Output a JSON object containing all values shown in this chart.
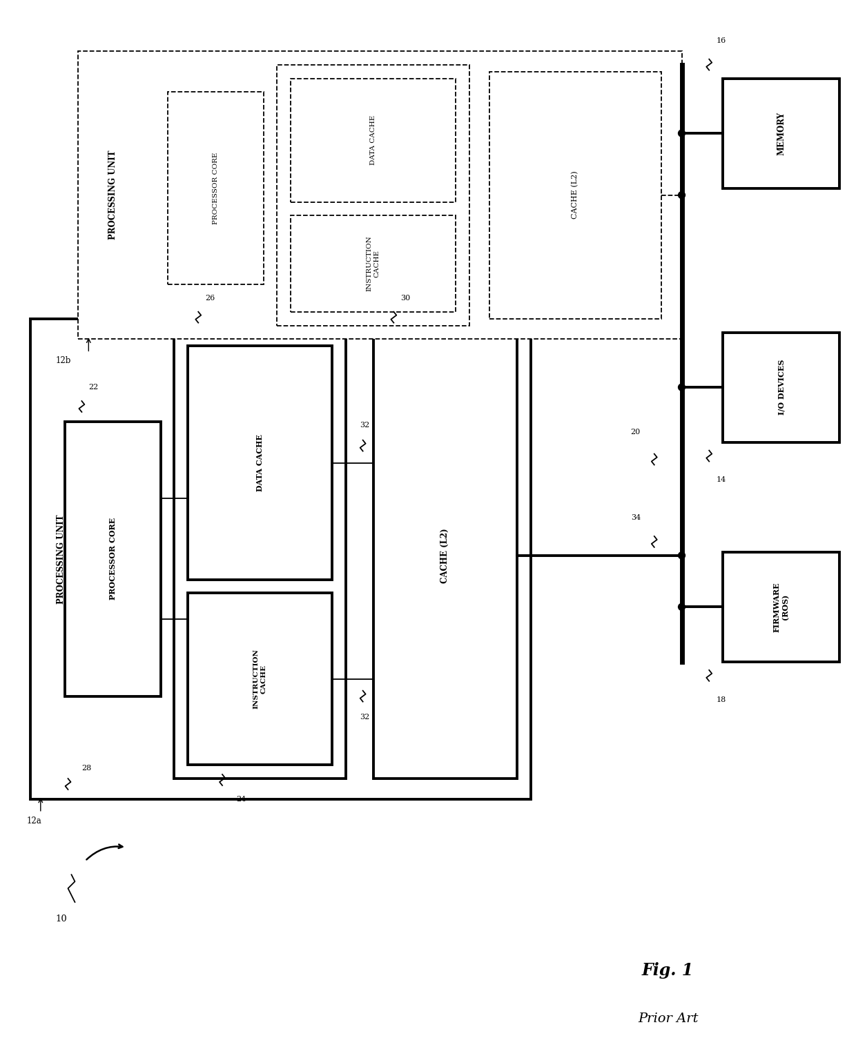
{
  "fig_width": 12.4,
  "fig_height": 15.3,
  "bg_color": "#ffffff",
  "title_text": "Fig. 1",
  "subtitle_text": "Prior Art",
  "labels": {
    "10": "10",
    "12a": "12a",
    "12b": "12b",
    "14": "14",
    "16": "16",
    "18": "18",
    "20": "20",
    "22": "22",
    "24": "24",
    "26": "26",
    "28": "28",
    "30": "30",
    "32a": "32",
    "32b": "32",
    "34": "34"
  },
  "lw_thin": 1.3,
  "lw_thick": 2.8,
  "lw_bus": 5.0
}
